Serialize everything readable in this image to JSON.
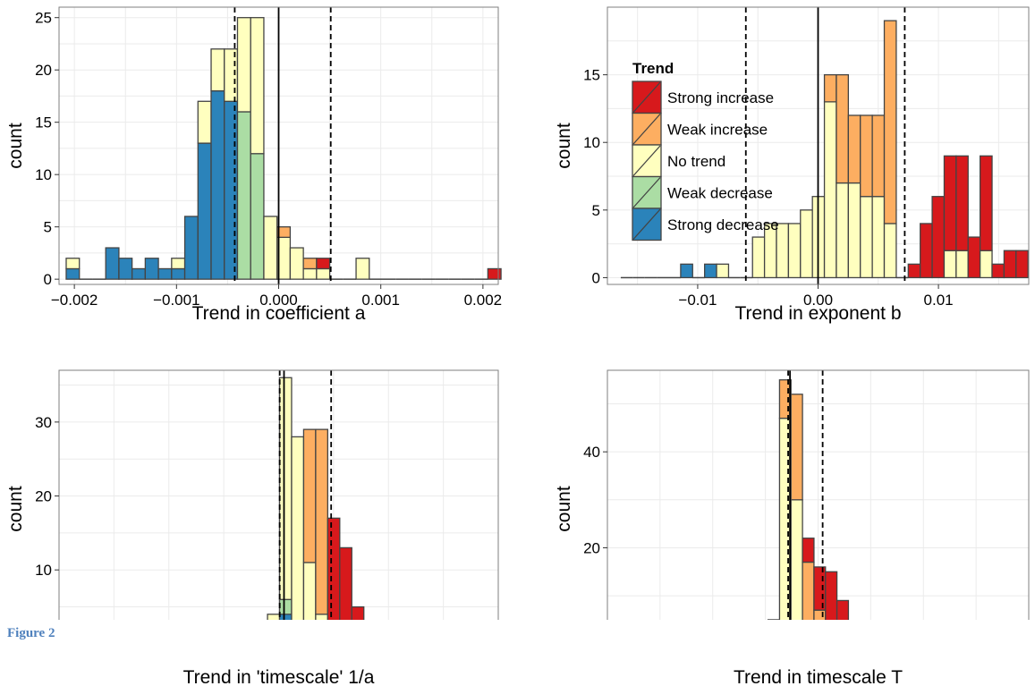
{
  "caption": "Figure 2",
  "colors": {
    "strong_increase": "#d7191c",
    "weak_increase": "#fdae61",
    "no_trend": "#ffffbf",
    "weak_decrease": "#abdda4",
    "strong_decrease": "#2b83ba",
    "bar_stroke": "#444444",
    "grid": "#ebebeb",
    "panel_border": "#7f7f7f"
  },
  "legend": {
    "title": "Trend",
    "entries": [
      "Strong increase",
      "Weak increase",
      "No trend",
      "Weak decrease",
      "Strong decrease"
    ]
  },
  "chart_data": [
    {
      "type": "bar",
      "xlabel": "Trend in coefficient a",
      "ylabel": "count",
      "xlim": [
        -0.00215,
        0.00215
      ],
      "ylim": [
        -0.5,
        26
      ],
      "xticks": [
        -0.002,
        -0.001,
        0.0,
        0.001,
        0.002
      ],
      "xtick_labels": [
        "−0.002",
        "−0.001",
        "0.000",
        "0.001",
        "0.002"
      ],
      "yticks": [
        0,
        5,
        10,
        15,
        20,
        25
      ],
      "ytick_labels": [
        "0",
        "5",
        "10",
        "15",
        "20",
        "25"
      ],
      "bin_start": -0.00208,
      "bin_width": 0.000129,
      "vlines": [
        {
          "x": 0.0,
          "style": "solid"
        },
        {
          "x": -0.00043,
          "style": "dashed"
        },
        {
          "x": 0.00051,
          "style": "dashed"
        }
      ],
      "series": [
        {
          "name": "Strong increase",
          "values": [
            0,
            0,
            0,
            0,
            0,
            0,
            0,
            0,
            0,
            0,
            0,
            0,
            0,
            0,
            0,
            0,
            0,
            0,
            0,
            1,
            0,
            0,
            0,
            0,
            0,
            0,
            0,
            0,
            0,
            0,
            0,
            0,
            1
          ]
        },
        {
          "name": "Weak increase",
          "values": [
            0,
            0,
            0,
            0,
            0,
            0,
            0,
            0,
            0,
            0,
            0,
            0,
            0,
            0,
            0,
            0,
            1,
            0,
            1,
            0,
            0,
            0,
            0,
            0,
            0,
            0,
            0,
            0,
            0,
            0,
            0,
            0,
            0
          ]
        },
        {
          "name": "No trend",
          "values": [
            1,
            0,
            0,
            0,
            0,
            0,
            0,
            0,
            1,
            0,
            4,
            4,
            5,
            9,
            13,
            6,
            4,
            3,
            1,
            1,
            0,
            0,
            2,
            0,
            0,
            0,
            0,
            0,
            0,
            0,
            0,
            0,
            0
          ]
        },
        {
          "name": "Weak decrease",
          "values": [
            0,
            0,
            0,
            0,
            0,
            0,
            0,
            0,
            0,
            0,
            0,
            0,
            0,
            16,
            12,
            0,
            0,
            0,
            0,
            0,
            0,
            0,
            0,
            0,
            0,
            0,
            0,
            0,
            0,
            0,
            0,
            0,
            0
          ]
        },
        {
          "name": "Strong decrease",
          "values": [
            1,
            0,
            0,
            3,
            2,
            1,
            2,
            1,
            1,
            6,
            13,
            18,
            17,
            0,
            0,
            0,
            0,
            0,
            0,
            0,
            0,
            0,
            0,
            0,
            0,
            0,
            0,
            0,
            0,
            0,
            0,
            0,
            0
          ]
        }
      ]
    },
    {
      "type": "bar",
      "xlabel": "Trend in exponent b",
      "ylabel": "count",
      "xlim": [
        -0.0175,
        0.0175
      ],
      "ylim": [
        -0.5,
        20
      ],
      "xticks": [
        -0.01,
        0.0,
        0.01
      ],
      "xtick_labels": [
        "−0.01",
        "0.00",
        "0.01"
      ],
      "yticks": [
        0,
        5,
        10,
        15
      ],
      "ytick_labels": [
        "0",
        "5",
        "10",
        "15"
      ],
      "bin_start": -0.01639,
      "bin_width": 0.000995,
      "vlines": [
        {
          "x": 0.0,
          "style": "solid"
        },
        {
          "x": -0.006,
          "style": "dashed"
        },
        {
          "x": 0.0072,
          "style": "dashed"
        }
      ],
      "series": [
        {
          "name": "Strong increase",
          "values": [
            0,
            0,
            0,
            0,
            0,
            0,
            0,
            0,
            0,
            0,
            0,
            0,
            0,
            0,
            0,
            0,
            0,
            0,
            0,
            0,
            0,
            0,
            0,
            0,
            1,
            4,
            6,
            7,
            7,
            3,
            7,
            1,
            2,
            2
          ]
        },
        {
          "name": "Weak increase",
          "values": [
            0,
            0,
            0,
            0,
            0,
            0,
            0,
            0,
            0,
            0,
            0,
            0,
            0,
            0,
            0,
            0,
            0,
            2,
            8,
            5,
            6,
            6,
            15,
            0,
            0,
            0,
            0,
            0,
            0,
            0,
            0,
            0,
            0,
            0
          ]
        },
        {
          "name": "No trend",
          "values": [
            0,
            0,
            0,
            0,
            0,
            0,
            0,
            0,
            1,
            0,
            0,
            3,
            4,
            4,
            4,
            5,
            6,
            13,
            7,
            7,
            6,
            6,
            4,
            0,
            0,
            0,
            0,
            2,
            2,
            0,
            2,
            0,
            0,
            0
          ]
        },
        {
          "name": "Weak decrease",
          "values": [
            0,
            0,
            0,
            0,
            0,
            0,
            0,
            0,
            0,
            0,
            0,
            0,
            0,
            0,
            0,
            0,
            0,
            0,
            0,
            0,
            0,
            0,
            0,
            0,
            0,
            0,
            0,
            0,
            0,
            0,
            0,
            0,
            0,
            0
          ]
        },
        {
          "name": "Strong decrease",
          "values": [
            0,
            0,
            0,
            0,
            0,
            1,
            0,
            1,
            0,
            0,
            0,
            0,
            0,
            0,
            0,
            0,
            0,
            0,
            0,
            0,
            0,
            0,
            0,
            0,
            0,
            0,
            0,
            0,
            0,
            0,
            0,
            0,
            0,
            0
          ]
        }
      ]
    },
    {
      "type": "bar",
      "xlabel": "Trend in 'timescale' 1/a",
      "ylabel": "count",
      "xlim": [
        -10.5,
        10
      ],
      "ylim": [
        -0.5,
        37
      ],
      "xticks": [],
      "xtick_labels": [],
      "yticks": [
        0,
        10,
        20,
        30
      ],
      "ytick_labels": [
        "0",
        "10",
        "20",
        "30"
      ],
      "bin_start": -9.2,
      "bin_width": 0.562,
      "vlines": [
        {
          "x": 0.0,
          "style": "solid"
        },
        {
          "x": -0.2,
          "style": "dashed"
        },
        {
          "x": 2.2,
          "style": "dashed"
        }
      ],
      "series": [
        {
          "name": "Strong increase",
          "values": [
            0,
            0,
            0,
            0,
            0,
            0,
            0,
            0,
            0,
            0,
            0,
            0,
            0,
            0,
            0,
            0,
            0,
            0,
            0,
            0,
            15,
            13,
            5,
            3,
            2,
            0,
            1,
            1,
            0,
            1,
            2,
            0,
            2
          ]
        },
        {
          "name": "Weak increase",
          "values": [
            0,
            0,
            0,
            0,
            0,
            0,
            0,
            0,
            0,
            0,
            0,
            0,
            0,
            0,
            0,
            0,
            0,
            0,
            18,
            25,
            1,
            0,
            0,
            0,
            0,
            0,
            0,
            0,
            0,
            0,
            0,
            0,
            0
          ]
        },
        {
          "name": "No trend",
          "values": [
            0,
            0,
            0,
            0,
            0,
            0,
            0,
            0,
            0,
            0,
            0,
            0,
            0,
            0,
            2,
            2,
            30,
            28,
            11,
            4,
            1,
            0,
            0,
            0,
            0,
            0,
            0,
            0,
            0,
            0,
            0,
            0,
            0
          ]
        },
        {
          "name": "Weak decrease",
          "values": [
            0,
            0,
            0,
            0,
            0,
            0,
            0,
            0,
            0,
            0,
            0,
            0,
            0,
            0,
            0,
            0,
            2,
            0,
            0,
            0,
            0,
            0,
            0,
            0,
            0,
            0,
            0,
            0,
            0,
            0,
            0,
            0,
            0
          ]
        },
        {
          "name": "Strong decrease",
          "values": [
            0,
            0,
            0,
            0,
            0,
            0,
            0,
            0,
            0,
            0,
            0,
            0,
            0,
            0,
            0,
            2,
            4,
            0,
            0,
            0,
            0,
            0,
            0,
            0,
            0,
            0,
            0,
            0,
            0,
            0,
            0,
            0,
            0
          ]
        }
      ]
    },
    {
      "type": "bar",
      "xlabel": "Trend in timescale T",
      "ylabel": "count",
      "xlim": [
        -1.2,
        12.6
      ],
      "ylim": [
        -0.8,
        57
      ],
      "xticks": [],
      "xtick_labels": [],
      "yticks": [
        0,
        20,
        40
      ],
      "ytick_labels": [
        "0",
        "20",
        "40"
      ],
      "bin_start": -0.45,
      "bin_width": 0.376,
      "vlines": [
        {
          "x": 4.78,
          "style": "solid"
        },
        {
          "x": 4.72,
          "style": "dashed"
        },
        {
          "x": 5.85,
          "style": "dashed"
        }
      ],
      "series": [
        {
          "name": "Strong increase",
          "values": [
            0,
            0,
            0,
            0,
            0,
            0,
            0,
            0,
            0,
            0,
            0,
            0,
            0,
            0,
            0,
            5,
            9,
            11,
            6,
            4,
            1,
            1,
            2,
            1,
            1,
            0,
            0,
            0,
            0,
            0,
            0,
            0,
            1
          ]
        },
        {
          "name": "Weak increase",
          "values": [
            0,
            0,
            0,
            0,
            0,
            0,
            0,
            0,
            0,
            0,
            0,
            0,
            0,
            8,
            22,
            14,
            3,
            0,
            0,
            0,
            0,
            0,
            0,
            0,
            0,
            0,
            0,
            0,
            0,
            0,
            0,
            0,
            0
          ]
        },
        {
          "name": "No trend",
          "values": [
            0,
            0,
            0,
            0,
            0,
            0,
            0,
            0,
            0,
            1,
            1,
            2,
            2,
            43,
            30,
            3,
            4,
            4,
            3,
            0,
            1,
            1,
            0,
            0,
            0,
            0,
            0,
            0,
            0,
            0,
            0,
            0,
            0
          ]
        },
        {
          "name": "Weak decrease",
          "values": [
            0,
            0,
            0,
            0,
            0,
            0,
            0,
            0,
            0,
            0,
            0,
            0,
            0,
            4,
            0,
            0,
            0,
            0,
            0,
            0,
            0,
            0,
            0,
            0,
            0,
            0,
            0,
            0,
            0,
            0,
            0,
            0,
            0
          ]
        },
        {
          "name": "Strong decrease",
          "values": [
            0,
            0,
            0,
            1,
            0,
            0,
            0,
            0,
            0,
            0,
            0,
            0,
            3,
            0,
            0,
            0,
            0,
            0,
            0,
            0,
            0,
            0,
            0,
            0,
            0,
            0,
            0,
            0,
            0,
            0,
            0,
            0,
            0
          ]
        }
      ]
    }
  ]
}
